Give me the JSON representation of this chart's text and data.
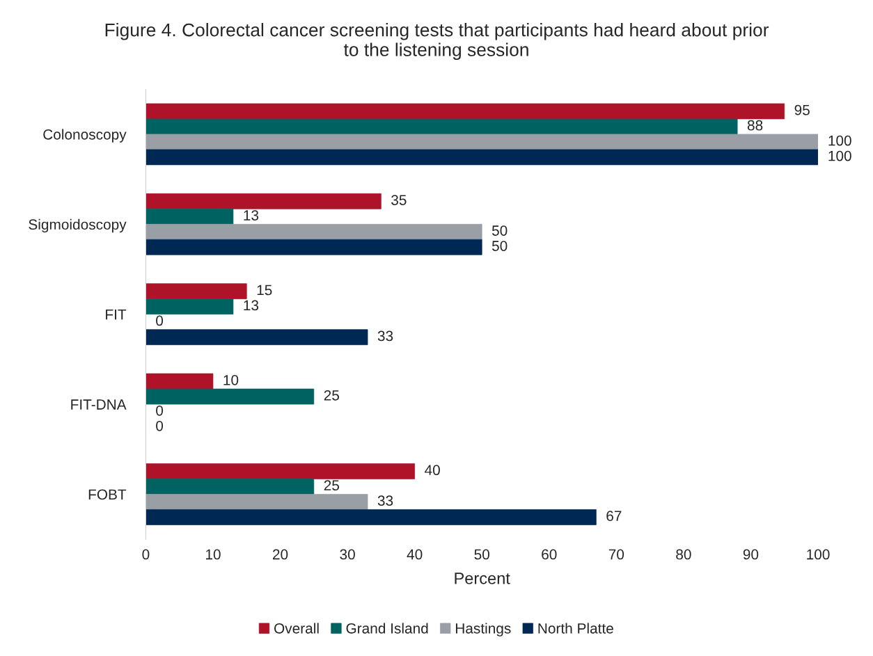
{
  "chart_data": {
    "type": "bar",
    "orientation": "horizontal",
    "title": "Figure 4. Colorectal cancer screening tests that participants had heard about prior to the listening session",
    "xlabel": "Percent",
    "categories": [
      "Colonoscopy",
      "Sigmoidoscopy",
      "FIT",
      "FIT-DNA",
      "FOBT"
    ],
    "series": [
      {
        "name": "Overall",
        "color": "#ae132a",
        "values": [
          95,
          35,
          15,
          10,
          40
        ]
      },
      {
        "name": "Grand Island",
        "color": "#006361",
        "values": [
          88,
          13,
          13,
          25,
          25
        ]
      },
      {
        "name": "Hastings",
        "color": "#9a9fa6",
        "values": [
          100,
          50,
          0,
          0,
          33
        ]
      },
      {
        "name": "North Platte",
        "color": "#002855",
        "values": [
          100,
          50,
          33,
          0,
          67
        ]
      }
    ],
    "xlim": [
      0,
      100
    ],
    "xticks": [
      0,
      10,
      20,
      30,
      40,
      50,
      60,
      70,
      80,
      90,
      100
    ],
    "data_labels": true,
    "legend": "bottom",
    "grid": false
  }
}
